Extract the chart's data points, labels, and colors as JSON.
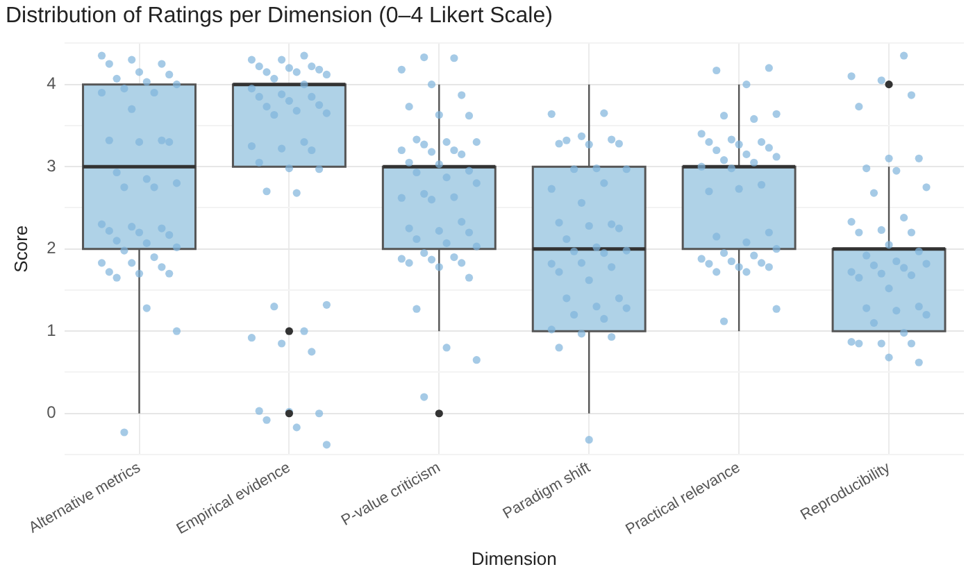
{
  "chart_data": {
    "type": "box",
    "title": "Distribution of Ratings per Dimension (0–4 Likert Scale)",
    "xlabel": "Dimension",
    "ylabel": "Score",
    "categories": [
      "Alternative metrics",
      "Empirical evidence",
      "P-value criticism",
      "Paradigm shift",
      "Practical relevance",
      "Reproducibility"
    ],
    "color": "#afd2e7",
    "boxes": [
      {
        "low": 0,
        "q1": 2,
        "median": 3,
        "q3": 4,
        "high": 4
      },
      {
        "low": 3,
        "q1": 3,
        "median": 4,
        "q3": 4,
        "high": 4,
        "outliers": [
          1,
          0
        ]
      },
      {
        "low": 1,
        "q1": 2,
        "median": 3,
        "q3": 3,
        "high": 4,
        "outliers": [
          0
        ]
      },
      {
        "low": 0,
        "q1": 1,
        "median": 2,
        "q3": 3,
        "high": 4
      },
      {
        "low": 1,
        "q1": 2,
        "median": 3,
        "q3": 3,
        "high": 4
      },
      {
        "low": 1,
        "q1": 1,
        "median": 2,
        "q3": 2,
        "high": 3,
        "outliers": [
          4
        ]
      }
    ],
    "series": [
      {
        "type": "scatter",
        "color": "#7fb4dc",
        "x": [
          "Alternative metrics",
          "Alternative metrics",
          "Alternative metrics",
          "Alternative metrics",
          "Alternative metrics",
          "Alternative metrics",
          "Alternative metrics",
          "Alternative metrics",
          "Alternative metrics",
          "Alternative metrics",
          "Alternative metrics",
          "Alternative metrics",
          "Alternative metrics",
          "Alternative metrics",
          "Alternative metrics",
          "Alternative metrics",
          "Alternative metrics",
          "Alternative metrics",
          "Alternative metrics",
          "Alternative metrics",
          "Alternative metrics",
          "Alternative metrics",
          "Alternative metrics",
          "Alternative metrics",
          "Alternative metrics",
          "Alternative metrics",
          "Alternative metrics",
          "Alternative metrics",
          "Alternative metrics",
          "Alternative metrics",
          "Alternative metrics",
          "Alternative metrics",
          "Alternative metrics",
          "Alternative metrics",
          "Alternative metrics",
          "Alternative metrics",
          "Alternative metrics",
          "Alternative metrics",
          "Alternative metrics",
          "Alternative metrics",
          "Alternative metrics",
          "Alternative metrics",
          "Alternative metrics",
          "Empirical evidence",
          "Empirical evidence",
          "Empirical evidence",
          "Empirical evidence",
          "Empirical evidence",
          "Empirical evidence",
          "Empirical evidence",
          "Empirical evidence",
          "Empirical evidence",
          "Empirical evidence",
          "Empirical evidence",
          "Empirical evidence",
          "Empirical evidence",
          "Empirical evidence",
          "Empirical evidence",
          "Empirical evidence",
          "Empirical evidence",
          "Empirical evidence",
          "Empirical evidence",
          "Empirical evidence",
          "Empirical evidence",
          "Empirical evidence",
          "Empirical evidence",
          "Empirical evidence",
          "Empirical evidence",
          "Empirical evidence",
          "Empirical evidence",
          "Empirical evidence",
          "Empirical evidence",
          "Empirical evidence",
          "Empirical evidence",
          "Empirical evidence",
          "Empirical evidence",
          "Empirical evidence",
          "Empirical evidence",
          "Empirical evidence",
          "Empirical evidence",
          "Empirical evidence",
          "Empirical evidence",
          "Empirical evidence",
          "Empirical evidence",
          "Empirical evidence",
          "Empirical evidence",
          "P-value criticism",
          "P-value criticism",
          "P-value criticism",
          "P-value criticism",
          "P-value criticism",
          "P-value criticism",
          "P-value criticism",
          "P-value criticism",
          "P-value criticism",
          "P-value criticism",
          "P-value criticism",
          "P-value criticism",
          "P-value criticism",
          "P-value criticism",
          "P-value criticism",
          "P-value criticism",
          "P-value criticism",
          "P-value criticism",
          "P-value criticism",
          "P-value criticism",
          "P-value criticism",
          "P-value criticism",
          "P-value criticism",
          "P-value criticism",
          "P-value criticism",
          "P-value criticism",
          "P-value criticism",
          "P-value criticism",
          "P-value criticism",
          "P-value criticism",
          "P-value criticism",
          "P-value criticism",
          "P-value criticism",
          "P-value criticism",
          "P-value criticism",
          "P-value criticism",
          "P-value criticism",
          "P-value criticism",
          "P-value criticism",
          "P-value criticism",
          "P-value criticism",
          "P-value criticism",
          "P-value criticism",
          "P-value criticism",
          "P-value criticism",
          "Paradigm shift",
          "Paradigm shift",
          "Paradigm shift",
          "Paradigm shift",
          "Paradigm shift",
          "Paradigm shift",
          "Paradigm shift",
          "Paradigm shift",
          "Paradigm shift",
          "Paradigm shift",
          "Paradigm shift",
          "Paradigm shift",
          "Paradigm shift",
          "Paradigm shift",
          "Paradigm shift",
          "Paradigm shift",
          "Paradigm shift",
          "Paradigm shift",
          "Paradigm shift",
          "Paradigm shift",
          "Paradigm shift",
          "Paradigm shift",
          "Paradigm shift",
          "Paradigm shift",
          "Paradigm shift",
          "Paradigm shift",
          "Paradigm shift",
          "Paradigm shift",
          "Paradigm shift",
          "Paradigm shift",
          "Paradigm shift",
          "Paradigm shift",
          "Paradigm shift",
          "Paradigm shift",
          "Paradigm shift",
          "Paradigm shift",
          "Paradigm shift",
          "Paradigm shift",
          "Paradigm shift",
          "Practical relevance",
          "Practical relevance",
          "Practical relevance",
          "Practical relevance",
          "Practical relevance",
          "Practical relevance",
          "Practical relevance",
          "Practical relevance",
          "Practical relevance",
          "Practical relevance",
          "Practical relevance",
          "Practical relevance",
          "Practical relevance",
          "Practical relevance",
          "Practical relevance",
          "Practical relevance",
          "Practical relevance",
          "Practical relevance",
          "Practical relevance",
          "Practical relevance",
          "Practical relevance",
          "Practical relevance",
          "Practical relevance",
          "Practical relevance",
          "Practical relevance",
          "Practical relevance",
          "Practical relevance",
          "Practical relevance",
          "Practical relevance",
          "Practical relevance",
          "Practical relevance",
          "Practical relevance",
          "Practical relevance",
          "Practical relevance",
          "Practical relevance",
          "Practical relevance",
          "Practical relevance",
          "Practical relevance",
          "Reproducibility",
          "Reproducibility",
          "Reproducibility",
          "Reproducibility",
          "Reproducibility",
          "Reproducibility",
          "Reproducibility",
          "Reproducibility",
          "Reproducibility",
          "Reproducibility",
          "Reproducibility",
          "Reproducibility",
          "Reproducibility",
          "Reproducibility",
          "Reproducibility",
          "Reproducibility",
          "Reproducibility",
          "Reproducibility",
          "Reproducibility",
          "Reproducibility",
          "Reproducibility",
          "Reproducibility",
          "Reproducibility",
          "Reproducibility",
          "Reproducibility",
          "Reproducibility",
          "Reproducibility",
          "Reproducibility",
          "Reproducibility",
          "Reproducibility",
          "Reproducibility",
          "Reproducibility",
          "Reproducibility",
          "Reproducibility",
          "Reproducibility",
          "Reproducibility",
          "Reproducibility",
          "Reproducibility",
          "Reproducibility",
          "Reproducibility"
        ],
        "values": [
          4.35,
          4.3,
          4.25,
          4.25,
          4.15,
          4.12,
          4.07,
          4.03,
          4.0,
          3.95,
          3.9,
          3.9,
          3.7,
          3.32,
          3.32,
          3.3,
          3.3,
          2.93,
          2.85,
          2.8,
          2.75,
          2.75,
          2.3,
          2.27,
          2.25,
          2.22,
          2.2,
          2.17,
          2.1,
          2.07,
          2.02,
          1.98,
          1.9,
          1.83,
          1.83,
          1.78,
          1.72,
          1.7,
          1.7,
          1.65,
          1.28,
          1.0,
          -0.23,
          4.35,
          4.3,
          4.3,
          4.22,
          4.22,
          4.2,
          4.18,
          4.15,
          4.15,
          4.12,
          4.07,
          4.0,
          3.95,
          3.88,
          3.85,
          3.85,
          3.8,
          3.75,
          3.73,
          3.68,
          3.65,
          3.63,
          3.3,
          3.25,
          3.22,
          3.2,
          3.05,
          2.98,
          2.97,
          2.7,
          2.68,
          1.32,
          1.3,
          1.0,
          0.92,
          0.85,
          0.75,
          0.03,
          0.02,
          0.0,
          -0.08,
          -0.17,
          -0.38,
          4.33,
          4.32,
          4.18,
          4.0,
          3.87,
          3.73,
          3.63,
          3.62,
          3.33,
          3.3,
          3.3,
          3.27,
          3.2,
          3.2,
          3.18,
          3.15,
          3.05,
          3.03,
          2.95,
          2.93,
          2.87,
          2.8,
          2.67,
          2.63,
          2.62,
          2.6,
          2.33,
          2.25,
          2.22,
          2.2,
          2.12,
          2.07,
          2.03,
          1.95,
          1.9,
          1.88,
          1.87,
          1.83,
          1.83,
          1.78,
          1.65,
          1.27,
          0.8,
          0.65,
          0.2,
          3.65,
          3.64,
          3.37,
          3.33,
          3.28,
          3.27,
          3.28,
          3.32,
          2.98,
          2.97,
          2.97,
          2.8,
          2.73,
          2.56,
          2.3,
          2.32,
          2.28,
          2.25,
          2.12,
          2.02,
          1.98,
          1.97,
          1.95,
          1.82,
          1.83,
          1.78,
          1.72,
          1.62,
          1.4,
          1.4,
          1.3,
          1.28,
          1.2,
          1.15,
          1.02,
          0.97,
          0.93,
          0.8,
          -0.32,
          4.2,
          4.17,
          4.0,
          3.64,
          3.62,
          3.58,
          3.4,
          3.33,
          3.3,
          3.3,
          3.27,
          3.23,
          3.2,
          3.15,
          3.12,
          3.08,
          3.05,
          3.0,
          2.98,
          2.78,
          2.7,
          2.73,
          2.2,
          2.15,
          2.08,
          2.0,
          1.95,
          1.92,
          1.88,
          1.85,
          1.83,
          1.82,
          1.78,
          1.78,
          1.72,
          1.72,
          1.27,
          1.12,
          4.35,
          4.1,
          4.05,
          3.87,
          3.73,
          3.1,
          3.1,
          2.98,
          2.95,
          2.75,
          2.68,
          2.38,
          2.33,
          2.23,
          2.2,
          2.2,
          2.05,
          1.97,
          1.92,
          1.85,
          1.82,
          1.8,
          1.77,
          1.72,
          1.7,
          1.68,
          1.65,
          1.52,
          1.3,
          1.28,
          1.25,
          1.2,
          1.1,
          0.98,
          0.87,
          0.85,
          0.85,
          0.85,
          0.68,
          0.62
        ]
      }
    ],
    "ylim": [
      -0.5,
      4.5
    ],
    "yticks": [
      {
        "value": -0.5,
        "label": null
      },
      0,
      {
        "value": 0.5,
        "label": null
      },
      1,
      {
        "value": 1.5,
        "label": null
      },
      2,
      {
        "value": 2.5,
        "label": null
      },
      3,
      {
        "value": 3.5,
        "label": null
      },
      4,
      {
        "value": 4.5,
        "label": null
      }
    ],
    "grid": true,
    "legend": false,
    "marker": "circle"
  }
}
